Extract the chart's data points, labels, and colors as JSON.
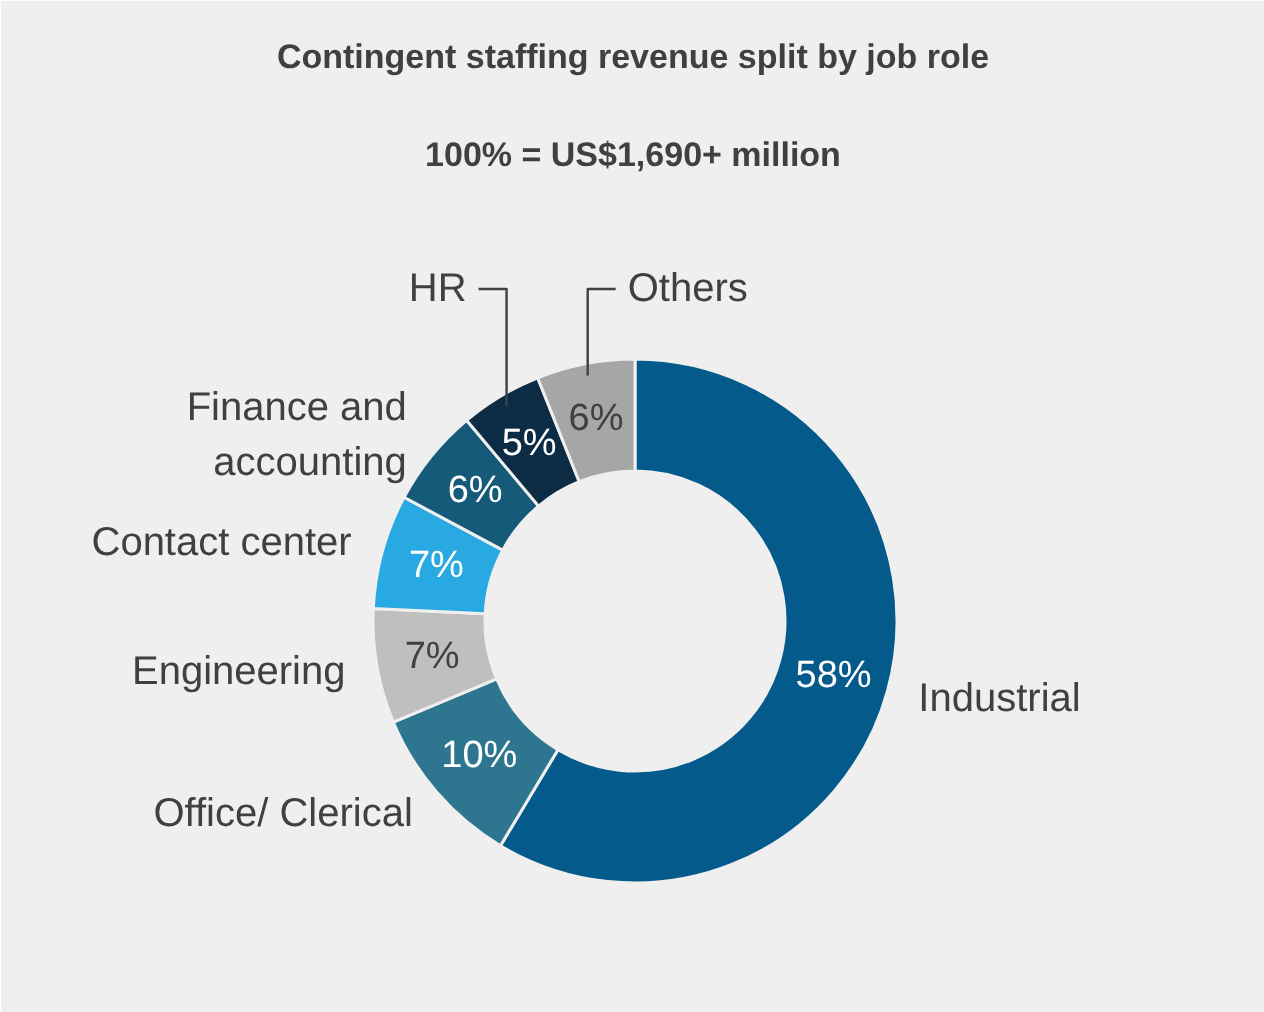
{
  "chart_data": {
    "type": "donut",
    "title": "Contingent staffing revenue split by job role",
    "subtitle": "100% = US$1,690+ million",
    "categories": [
      "Industrial",
      "Office/ Clerical",
      "Engineering",
      "Contact center",
      "Finance and accounting",
      "HR",
      "Others"
    ],
    "values": [
      58,
      10,
      7,
      7,
      6,
      5,
      6
    ],
    "value_labels": [
      "58%",
      "10%",
      "7%",
      "7%",
      "6%",
      "5%",
      "6%"
    ],
    "colors": [
      "#035a8b",
      "#2e7690",
      "#bfbfbf",
      "#29a9e1",
      "#155a78",
      "#0c2b45",
      "#a6a6a6"
    ]
  }
}
